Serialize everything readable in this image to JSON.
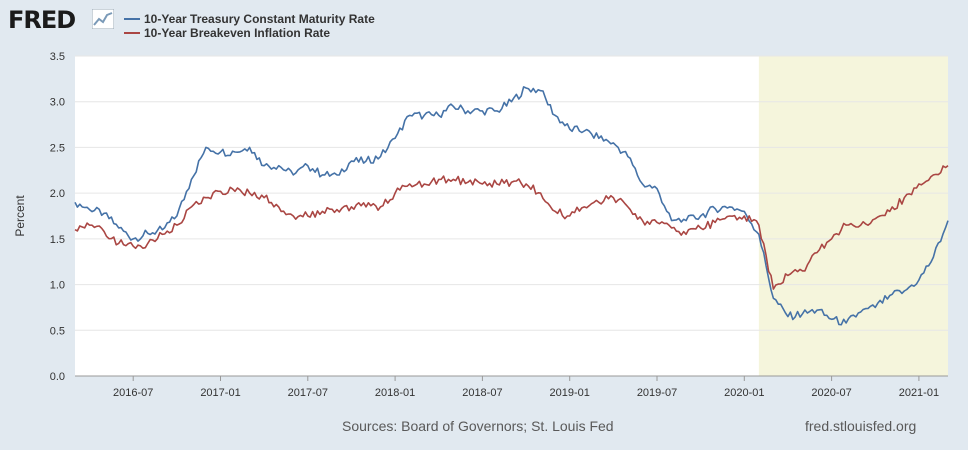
{
  "header": {
    "logo_text": "FRED",
    "logo_icon": "line-chart-icon"
  },
  "footer": {
    "sources": "Sources: Board of Governors; St. Louis Fed",
    "url": "fred.stlouisfed.org"
  },
  "colors": {
    "background": "#e1e9f0",
    "plot_background": "#ffffff",
    "recession_shade": "#f5f5dc",
    "treasury": "#4572a7",
    "breakeven": "#aa4643"
  },
  "chart_data": {
    "type": "line",
    "ylabel": "Percent",
    "ylim": [
      0.0,
      3.5
    ],
    "y_ticks": [
      "0.0",
      "0.5",
      "1.0",
      "1.5",
      "2.0",
      "2.5",
      "3.0",
      "3.5"
    ],
    "x_ticks": [
      "2016-07",
      "2017-01",
      "2017-07",
      "2018-01",
      "2018-07",
      "2019-01",
      "2019-07",
      "2020-01",
      "2020-07",
      "2021-01"
    ],
    "x_range": [
      "2016-03",
      "2021-03"
    ],
    "grid": "horizontal",
    "legend": "top-left",
    "shaded_region": {
      "start": "2020-02",
      "end": "2021-03"
    },
    "series": [
      {
        "name": "10-Year Treasury Constant Maturity Rate",
        "color": "#4572a7",
        "x": [
          "2016-03",
          "2016-04",
          "2016-05",
          "2016-06",
          "2016-07",
          "2016-08",
          "2016-09",
          "2016-10",
          "2016-11",
          "2016-12",
          "2017-01",
          "2017-02",
          "2017-03",
          "2017-04",
          "2017-05",
          "2017-06",
          "2017-07",
          "2017-08",
          "2017-09",
          "2017-10",
          "2017-11",
          "2017-12",
          "2018-01",
          "2018-02",
          "2018-03",
          "2018-04",
          "2018-05",
          "2018-06",
          "2018-07",
          "2018-08",
          "2018-09",
          "2018-10",
          "2018-11",
          "2018-12",
          "2019-01",
          "2019-02",
          "2019-03",
          "2019-04",
          "2019-05",
          "2019-06",
          "2019-07",
          "2019-08",
          "2019-09",
          "2019-10",
          "2019-11",
          "2019-12",
          "2020-01",
          "2020-02",
          "2020-03",
          "2020-04",
          "2020-05",
          "2020-06",
          "2020-07",
          "2020-08",
          "2020-09",
          "2020-10",
          "2020-11",
          "2020-12",
          "2021-01",
          "2021-02",
          "2021-03"
        ],
        "values": [
          1.9,
          1.82,
          1.78,
          1.62,
          1.5,
          1.56,
          1.6,
          1.75,
          2.15,
          2.5,
          2.45,
          2.45,
          2.5,
          2.3,
          2.3,
          2.2,
          2.3,
          2.2,
          2.2,
          2.35,
          2.35,
          2.4,
          2.6,
          2.85,
          2.85,
          2.85,
          2.95,
          2.9,
          2.9,
          2.9,
          3.0,
          3.15,
          3.12,
          2.85,
          2.7,
          2.68,
          2.6,
          2.55,
          2.4,
          2.1,
          2.05,
          1.7,
          1.7,
          1.75,
          1.83,
          1.85,
          1.8,
          1.55,
          0.85,
          0.65,
          0.68,
          0.72,
          0.62,
          0.58,
          0.7,
          0.75,
          0.88,
          0.93,
          1.05,
          1.3,
          1.7
        ]
      },
      {
        "name": "10-Year Breakeven Inflation Rate",
        "color": "#aa4643",
        "x": [
          "2016-03",
          "2016-04",
          "2016-05",
          "2016-06",
          "2016-07",
          "2016-08",
          "2016-09",
          "2016-10",
          "2016-11",
          "2016-12",
          "2017-01",
          "2017-02",
          "2017-03",
          "2017-04",
          "2017-05",
          "2017-06",
          "2017-07",
          "2017-08",
          "2017-09",
          "2017-10",
          "2017-11",
          "2017-12",
          "2018-01",
          "2018-02",
          "2018-03",
          "2018-04",
          "2018-05",
          "2018-06",
          "2018-07",
          "2018-08",
          "2018-09",
          "2018-10",
          "2018-11",
          "2018-12",
          "2019-01",
          "2019-02",
          "2019-03",
          "2019-04",
          "2019-05",
          "2019-06",
          "2019-07",
          "2019-08",
          "2019-09",
          "2019-10",
          "2019-11",
          "2019-12",
          "2020-01",
          "2020-02",
          "2020-03",
          "2020-04",
          "2020-05",
          "2020-06",
          "2020-07",
          "2020-08",
          "2020-09",
          "2020-10",
          "2020-11",
          "2020-12",
          "2021-01",
          "2021-02",
          "2021-03"
        ],
        "values": [
          1.6,
          1.65,
          1.58,
          1.45,
          1.42,
          1.45,
          1.55,
          1.65,
          1.85,
          1.95,
          2.02,
          2.02,
          2.0,
          1.95,
          1.85,
          1.75,
          1.75,
          1.8,
          1.82,
          1.85,
          1.85,
          1.85,
          2.0,
          2.1,
          2.1,
          2.15,
          2.15,
          2.12,
          2.1,
          2.1,
          2.12,
          2.1,
          2.0,
          1.8,
          1.75,
          1.85,
          1.9,
          1.95,
          1.85,
          1.7,
          1.68,
          1.62,
          1.55,
          1.62,
          1.68,
          1.75,
          1.75,
          1.65,
          0.95,
          1.1,
          1.15,
          1.35,
          1.5,
          1.65,
          1.65,
          1.72,
          1.8,
          1.95,
          2.1,
          2.2,
          2.3
        ]
      }
    ]
  }
}
